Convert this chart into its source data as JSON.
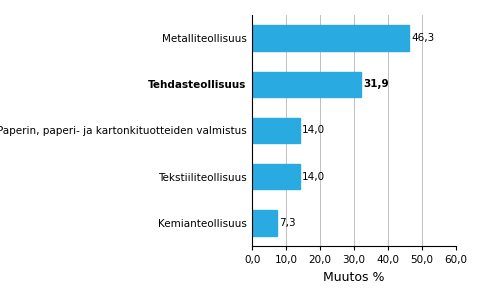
{
  "categories": [
    "Kemianteollisuus",
    "Tekstiiliteollisuus",
    "Paperin, paperi- ja kartonkituotteiden valmistus",
    "Tehdasteollisuus",
    "Metalliteollisuus"
  ],
  "values": [
    7.3,
    14.0,
    14.0,
    31.9,
    46.3
  ],
  "bar_color": "#29abe2",
  "value_labels": [
    "7,3",
    "14,0",
    "14,0",
    "31,9",
    "46,3"
  ],
  "bold_index": 3,
  "xlabel": "Muutos %",
  "xlim": [
    0,
    60
  ],
  "xticks": [
    0,
    10,
    20,
    30,
    40,
    50,
    60
  ],
  "xtick_labels": [
    "0,0",
    "10,0",
    "20,0",
    "30,0",
    "40,0",
    "50,0",
    "60,0"
  ],
  "background_color": "#ffffff",
  "bar_height": 0.55,
  "label_fontsize": 7.5,
  "value_fontsize": 7.5,
  "xlabel_fontsize": 9
}
